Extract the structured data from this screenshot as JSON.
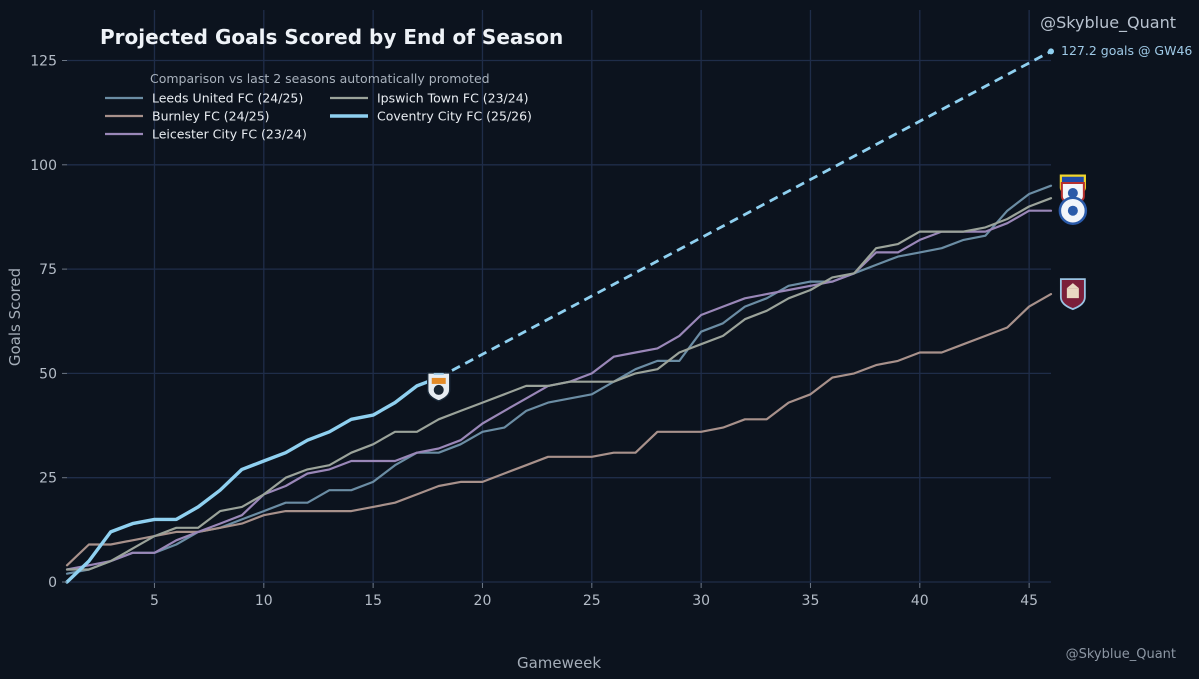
{
  "chart_data": {
    "type": "line",
    "title": "Projected Goals Scored by End of Season",
    "xlabel": "Gameweek",
    "ylabel": "Goals Scored",
    "xlim": [
      1,
      46
    ],
    "ylim": [
      -10,
      130
    ],
    "xticks": [
      5,
      10,
      15,
      20,
      25,
      30,
      35,
      40,
      45
    ],
    "yticks": [
      0,
      25,
      50,
      75,
      100,
      125
    ],
    "grid": true,
    "legend_title": "Comparison vs last 2 seasons automatically promoted",
    "legend_location": "top-left",
    "series": [
      {
        "name": "Leeds United FC (24/25)",
        "color": "#6b8da4",
        "x": [
          1,
          2,
          3,
          4,
          5,
          6,
          7,
          8,
          9,
          10,
          11,
          12,
          13,
          14,
          15,
          16,
          17,
          18,
          19,
          20,
          21,
          22,
          23,
          24,
          25,
          26,
          27,
          28,
          29,
          30,
          31,
          32,
          33,
          34,
          35,
          36,
          37,
          38,
          39,
          40,
          41,
          42,
          43,
          44,
          45,
          46
        ],
        "values": [
          2,
          3,
          5,
          7,
          7,
          9,
          12,
          13,
          15,
          17,
          19,
          19,
          22,
          22,
          24,
          28,
          31,
          31,
          33,
          36,
          37,
          41,
          43,
          44,
          45,
          48,
          51,
          53,
          53,
          60,
          62,
          66,
          68,
          71,
          72,
          72,
          74,
          76,
          78,
          79,
          80,
          82,
          83,
          89,
          93,
          95
        ]
      },
      {
        "name": "Burnley FC (24/25)",
        "color": "#a8918b",
        "x": [
          1,
          2,
          3,
          4,
          5,
          6,
          7,
          8,
          9,
          10,
          11,
          12,
          13,
          14,
          15,
          16,
          17,
          18,
          19,
          20,
          21,
          22,
          23,
          24,
          25,
          26,
          27,
          28,
          29,
          30,
          31,
          32,
          33,
          34,
          35,
          36,
          37,
          38,
          39,
          40,
          41,
          42,
          43,
          44,
          45,
          46
        ],
        "values": [
          4,
          9,
          9,
          10,
          11,
          12,
          12,
          13,
          14,
          16,
          17,
          17,
          17,
          17,
          18,
          19,
          21,
          23,
          24,
          24,
          26,
          28,
          30,
          30,
          30,
          31,
          31,
          36,
          36,
          36,
          37,
          39,
          39,
          43,
          45,
          49,
          50,
          52,
          53,
          55,
          55,
          57,
          59,
          61,
          66,
          69
        ]
      },
      {
        "name": "Leicester City FC (23/24)",
        "color": "#9a87b8",
        "x": [
          1,
          2,
          3,
          4,
          5,
          6,
          7,
          8,
          9,
          10,
          11,
          12,
          13,
          14,
          15,
          16,
          17,
          18,
          19,
          20,
          21,
          22,
          23,
          24,
          25,
          26,
          27,
          28,
          29,
          30,
          31,
          32,
          33,
          34,
          35,
          36,
          37,
          38,
          39,
          40,
          41,
          42,
          43,
          44,
          45,
          46
        ],
        "values": [
          3,
          4,
          5,
          7,
          7,
          10,
          12,
          14,
          16,
          21,
          23,
          26,
          27,
          29,
          29,
          29,
          31,
          32,
          34,
          38,
          41,
          44,
          47,
          48,
          50,
          54,
          55,
          56,
          59,
          64,
          66,
          68,
          69,
          70,
          71,
          72,
          74,
          79,
          79,
          82,
          84,
          84,
          84,
          86,
          89,
          89
        ]
      },
      {
        "name": "Ipswich Town FC (23/24)",
        "color": "#9ba39a",
        "x": [
          1,
          2,
          3,
          4,
          5,
          6,
          7,
          8,
          9,
          10,
          11,
          12,
          13,
          14,
          15,
          16,
          17,
          18,
          19,
          20,
          21,
          22,
          23,
          24,
          25,
          26,
          27,
          28,
          29,
          30,
          31,
          32,
          33,
          34,
          35,
          36,
          37,
          38,
          39,
          40,
          41,
          42,
          43,
          44,
          45,
          46
        ],
        "values": [
          3,
          3,
          5,
          8,
          11,
          13,
          13,
          17,
          18,
          21,
          25,
          27,
          28,
          31,
          33,
          36,
          36,
          39,
          41,
          43,
          45,
          47,
          47,
          48,
          48,
          48,
          50,
          51,
          55,
          57,
          59,
          63,
          65,
          68,
          70,
          73,
          74,
          80,
          81,
          84,
          84,
          84,
          85,
          87,
          90,
          92
        ]
      },
      {
        "name": "Coventry City FC (25/26)",
        "color": "#8fd0f0",
        "x": [
          1,
          2,
          3,
          4,
          5,
          6,
          7,
          8,
          9,
          10,
          11,
          12,
          13,
          14,
          15,
          16,
          17,
          18
        ],
        "values": [
          0,
          5,
          12,
          14,
          15,
          15,
          18,
          22,
          27,
          29,
          31,
          34,
          36,
          39,
          40,
          43,
          47,
          49
        ]
      }
    ],
    "projection": {
      "series": "Coventry City FC (25/26)",
      "x": [
        18,
        46
      ],
      "values": [
        49,
        127.2
      ],
      "style": "dashed",
      "label": "127.2 goals @ GW46"
    },
    "crests": [
      {
        "name": "coventry-crest-icon",
        "x": 18,
        "y": 47
      },
      {
        "name": "ipswich-crest-icon",
        "x": 47,
        "y": 95
      },
      {
        "name": "leeds-crest-icon",
        "x": 47,
        "y": 93
      },
      {
        "name": "leicester-crest-icon",
        "x": 47,
        "y": 89
      },
      {
        "name": "burnley-crest-icon",
        "x": 47,
        "y": 69
      }
    ]
  },
  "watermarks": {
    "top": "@Skyblue_Quant",
    "bottom": "@Skyblue_Quant"
  }
}
